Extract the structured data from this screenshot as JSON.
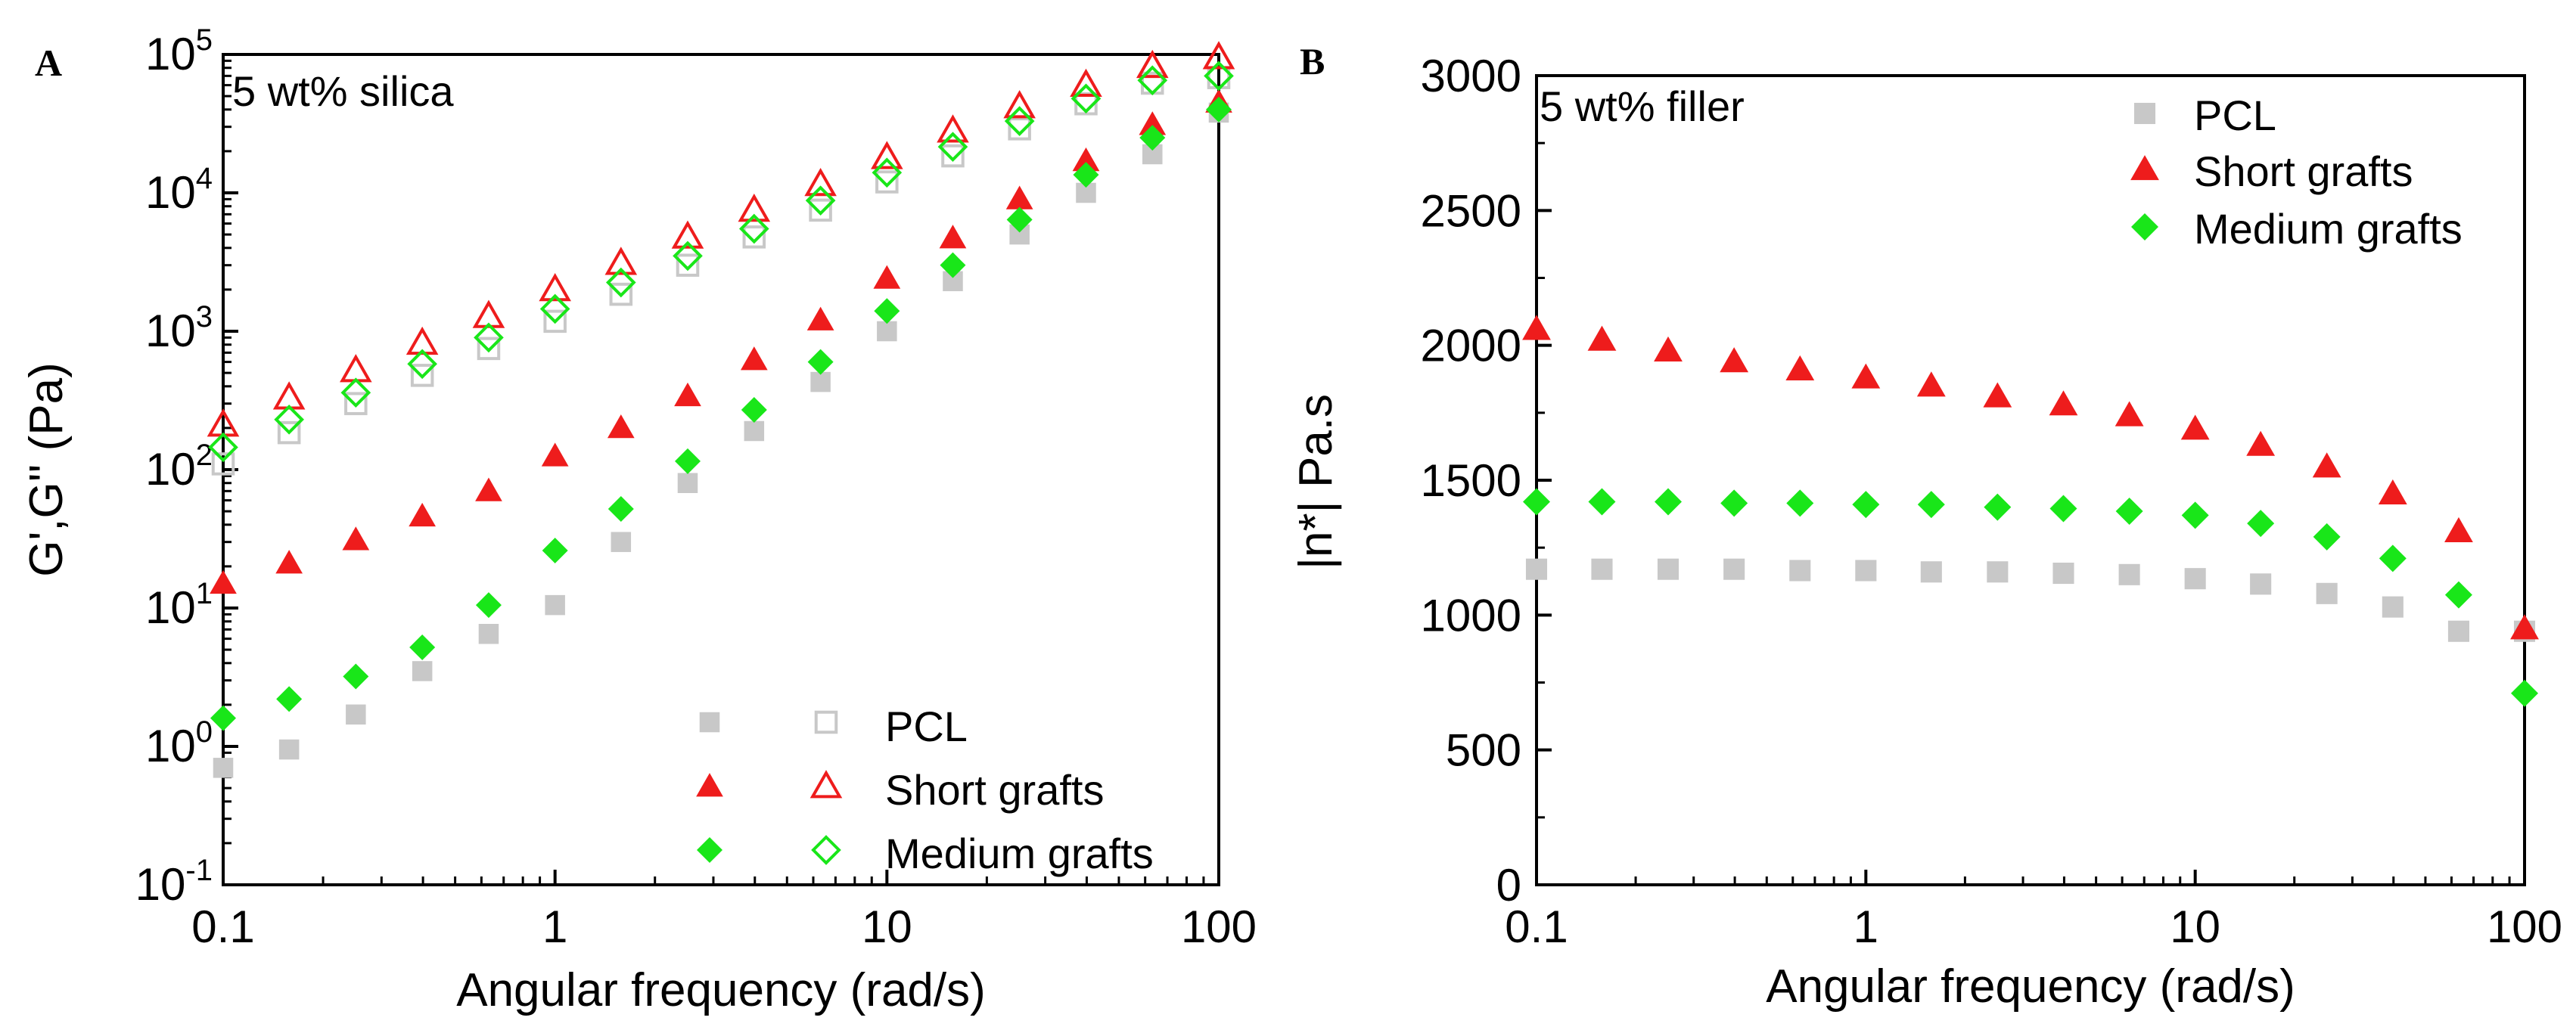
{
  "chart_data": [
    {
      "panel_label": "A",
      "type": "scatter",
      "annotation": "5 wt% silica",
      "xlabel": "Angular frequency (rad/s)",
      "ylabel": "G',G'' (Pa)",
      "xscale": "log",
      "yscale": "log",
      "xlim": [
        0.1,
        100
      ],
      "ylim": [
        0.1,
        100000
      ],
      "x_ticks": [
        {
          "value": 0.1,
          "label": "0.1"
        },
        {
          "value": 1,
          "label": "1"
        },
        {
          "value": 10,
          "label": "10"
        },
        {
          "value": 100,
          "label": "100"
        }
      ],
      "y_ticks": [
        {
          "value": 0.1,
          "base": "10",
          "exp": "-1"
        },
        {
          "value": 1,
          "base": "10",
          "exp": "0"
        },
        {
          "value": 10,
          "base": "10",
          "exp": "1"
        },
        {
          "value": 100,
          "base": "10",
          "exp": "2"
        },
        {
          "value": 1000,
          "base": "10",
          "exp": "3"
        },
        {
          "value": 10000,
          "base": "10",
          "exp": "4"
        },
        {
          "value": 100000,
          "base": "10",
          "exp": "5"
        }
      ],
      "legend_position": "bottom-right",
      "legend": [
        {
          "name": "PCL",
          "filled_marker": "square",
          "open_marker": "square-open",
          "color": "#c8c8c8"
        },
        {
          "name": "Short grafts",
          "filled_marker": "triangle",
          "open_marker": "triangle-open",
          "color": "#ee1c1c"
        },
        {
          "name": "Medium grafts",
          "filled_marker": "diamond",
          "open_marker": "diamond-open",
          "color": "#19e619"
        }
      ],
      "x": [
        0.1,
        0.158,
        0.251,
        0.398,
        0.631,
        1,
        1.58,
        2.51,
        3.98,
        6.31,
        10,
        15.8,
        25.1,
        39.8,
        63.1,
        100
      ],
      "series": [
        {
          "name": "PCL G'",
          "marker": "square",
          "color": "#c8c8c8",
          "values": [
            0.7,
            0.95,
            1.7,
            3.5,
            6.5,
            10.5,
            30,
            80,
            190,
            430,
            1000,
            2300,
            5000,
            10000,
            19000,
            38000
          ]
        },
        {
          "name": "PCL G''",
          "marker": "square-open",
          "color": "#c8c8c8",
          "values": [
            110,
            185,
            300,
            480,
            750,
            1180,
            1850,
            3000,
            4800,
            7500,
            12000,
            18500,
            29000,
            44000,
            62000,
            68000
          ]
        },
        {
          "name": "Short grafts G'",
          "marker": "triangle",
          "color": "#ee1c1c",
          "values": [
            15,
            21,
            31,
            46,
            70,
            125,
            200,
            340,
            620,
            1200,
            2400,
            4700,
            9000,
            17000,
            31000,
            45000
          ]
        },
        {
          "name": "Short grafts G''",
          "marker": "triangle-open",
          "color": "#ee1c1c",
          "values": [
            210,
            330,
            520,
            820,
            1280,
            2000,
            3100,
            4800,
            7500,
            11500,
            18000,
            28000,
            42000,
            60000,
            82000,
            95000
          ]
        },
        {
          "name": "Medium grafts G'",
          "marker": "diamond",
          "color": "#19e619",
          "values": [
            1.6,
            2.2,
            3.2,
            5.2,
            10.5,
            26,
            52,
            115,
            270,
            600,
            1400,
            3000,
            6400,
            13500,
            25000,
            40000
          ]
        },
        {
          "name": "Medium grafts G''",
          "marker": "diamond-open",
          "color": "#19e619",
          "values": [
            145,
            230,
            360,
            580,
            900,
            1450,
            2250,
            3500,
            5500,
            8800,
            14000,
            21500,
            33000,
            48000,
            65000,
            70000
          ]
        }
      ]
    },
    {
      "panel_label": "B",
      "type": "scatter",
      "annotation": "5 wt% filler",
      "xlabel": "Angular frequency (rad/s)",
      "ylabel": "|n*| Pa.s",
      "xscale": "log",
      "yscale": "linear",
      "xlim": [
        0.1,
        100
      ],
      "ylim": [
        0,
        3000
      ],
      "x_ticks": [
        {
          "value": 0.1,
          "label": "0.1"
        },
        {
          "value": 1,
          "label": "1"
        },
        {
          "value": 10,
          "label": "10"
        },
        {
          "value": 100,
          "label": "100"
        }
      ],
      "y_ticks": [
        {
          "value": 0,
          "label": "0"
        },
        {
          "value": 500,
          "label": "500"
        },
        {
          "value": 1000,
          "label": "1000"
        },
        {
          "value": 1500,
          "label": "1500"
        },
        {
          "value": 2000,
          "label": "2000"
        },
        {
          "value": 2500,
          "label": "2500"
        },
        {
          "value": 3000,
          "label": "3000"
        }
      ],
      "legend_position": "top-right",
      "legend": [
        {
          "name": "PCL",
          "marker": "square",
          "color": "#c8c8c8"
        },
        {
          "name": "Short grafts",
          "marker": "triangle",
          "color": "#ee1c1c"
        },
        {
          "name": "Medium grafts",
          "marker": "diamond",
          "color": "#19e619"
        }
      ],
      "x": [
        0.1,
        0.158,
        0.251,
        0.398,
        0.631,
        1,
        1.58,
        2.51,
        3.98,
        6.31,
        10,
        15.8,
        25.1,
        39.8,
        63.1,
        100
      ],
      "series": [
        {
          "name": "PCL",
          "marker": "square",
          "color": "#c8c8c8",
          "values": [
            1170,
            1170,
            1170,
            1170,
            1165,
            1165,
            1160,
            1160,
            1155,
            1150,
            1135,
            1115,
            1080,
            1030,
            940,
            940
          ]
        },
        {
          "name": "Short grafts",
          "marker": "triangle",
          "color": "#ee1c1c",
          "values": [
            2060,
            2020,
            1980,
            1940,
            1910,
            1880,
            1850,
            1810,
            1780,
            1740,
            1690,
            1630,
            1550,
            1450,
            1310,
            950
          ]
        },
        {
          "name": "Medium grafts",
          "marker": "diamond",
          "color": "#19e619",
          "values": [
            1420,
            1420,
            1420,
            1415,
            1415,
            1410,
            1410,
            1400,
            1395,
            1385,
            1370,
            1340,
            1290,
            1210,
            1075,
            710
          ]
        }
      ]
    }
  ]
}
